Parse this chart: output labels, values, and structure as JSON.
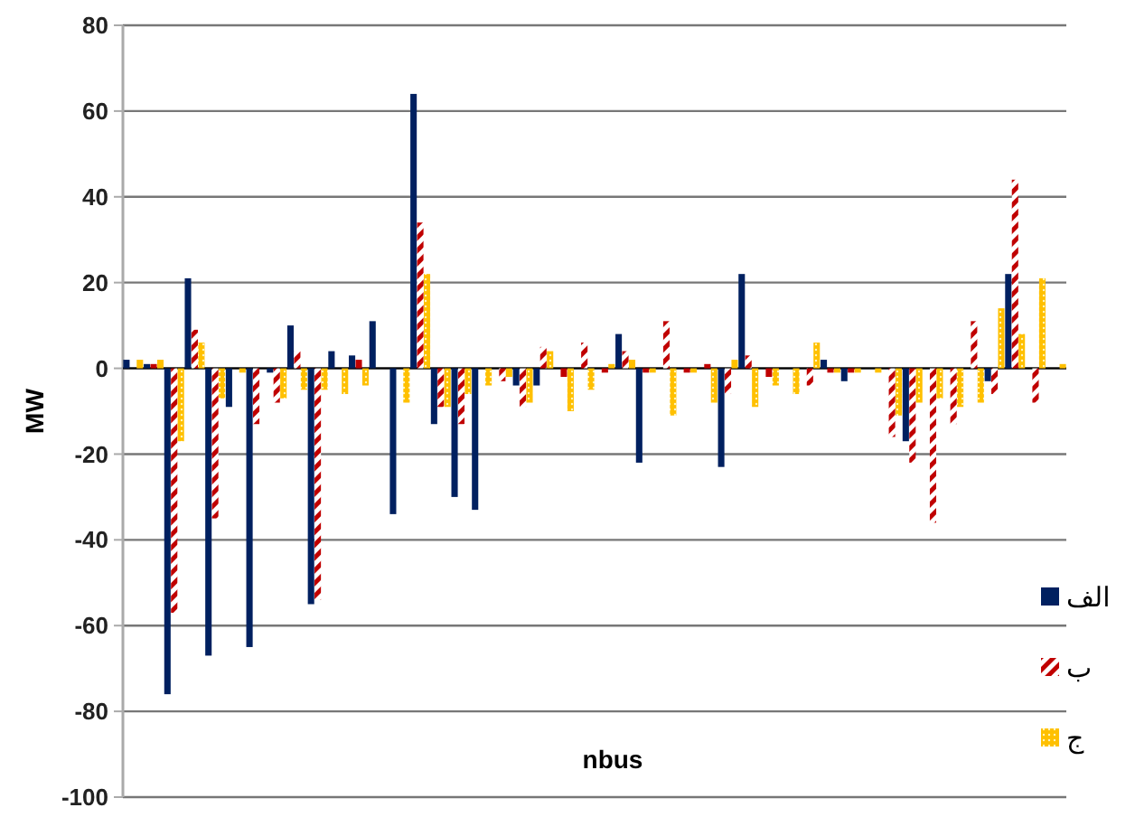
{
  "chart_data": {
    "type": "bar",
    "xlabel": "nbus",
    "ylabel": "MW",
    "categories": [
      null,
      null,
      null,
      null,
      null,
      null,
      null,
      null,
      null,
      null,
      null,
      null,
      null,
      null,
      null,
      null,
      null,
      null,
      null,
      null,
      null,
      null,
      null,
      null,
      null,
      null,
      null,
      null,
      null,
      null,
      null,
      null,
      null,
      null,
      null,
      null,
      null,
      null,
      null,
      null,
      null,
      null,
      null,
      null,
      null,
      null
    ],
    "series": [
      {
        "name": "الف",
        "color": "#002060",
        "values": [
          2,
          1,
          -76,
          21,
          -67,
          -9,
          -65,
          -1,
          10,
          -55,
          4,
          3,
          11,
          -34,
          64,
          -13,
          -30,
          -33,
          0,
          -4,
          -4,
          0,
          0,
          0,
          8,
          -22,
          0,
          0,
          0,
          -23,
          22,
          0,
          0,
          0,
          2,
          -3,
          0,
          0,
          -17,
          0,
          0,
          0,
          -3,
          22,
          0,
          0
        ]
      },
      {
        "name": "ب",
        "color": "#c00000",
        "values": [
          0,
          1,
          -57,
          9,
          -35,
          0,
          -13,
          -8,
          4,
          -54,
          0,
          2,
          0,
          0,
          34,
          -9,
          -13,
          0,
          -3,
          -9,
          5,
          -2,
          6,
          -1,
          4,
          -1,
          11,
          -1,
          1,
          -6,
          3,
          -2,
          0,
          -4,
          -1,
          -1,
          0,
          -16,
          -22,
          -36,
          -13,
          11,
          -6,
          44,
          -8,
          0
        ]
      },
      {
        "name": "ج",
        "color": "#ffc000",
        "values": [
          2,
          2,
          -17,
          6,
          -7,
          -1,
          0,
          -7,
          -5,
          -5,
          -6,
          -4,
          0,
          -8,
          22,
          -9,
          -6,
          -4,
          -2,
          -8,
          4,
          -10,
          -5,
          1,
          2,
          -1,
          -11,
          -1,
          -8,
          2,
          -9,
          -4,
          -6,
          6,
          -1,
          -1,
          -1,
          -11,
          -8,
          -7,
          -9,
          -8,
          14,
          8,
          21,
          1
        ]
      }
    ],
    "ylim": [
      -100,
      80
    ],
    "yticks": [
      -100,
      -80,
      -60,
      -40,
      -20,
      0,
      20,
      40,
      60,
      80
    ],
    "grid": "y",
    "legend": "right",
    "tick_labels": "y"
  }
}
